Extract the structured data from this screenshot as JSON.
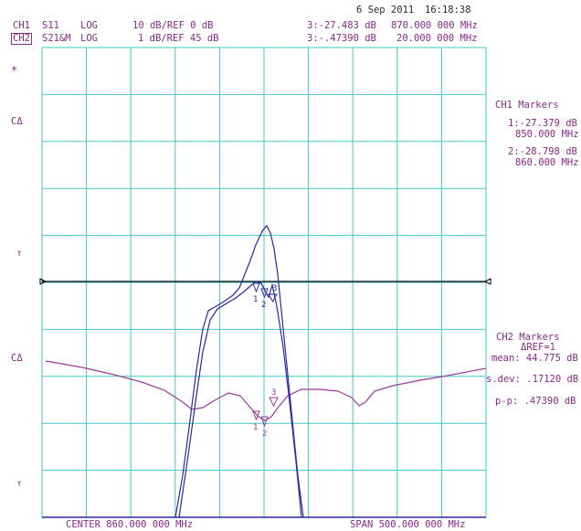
{
  "header": {
    "date": "6 Sep 2011",
    "time": "16:18:38",
    "ch1": {
      "label": "CH1",
      "param": "S11",
      "format": "LOG",
      "scale": "10 dB/REF 0 dB"
    },
    "ch2": {
      "label": "CH2",
      "param": "S21&M",
      "format": "LOG",
      "scale": "1 dB/REF 45 dB"
    },
    "marker3_ch1": {
      "value": "3:-27.483 dB",
      "freq": "870.000 000 MHz"
    },
    "marker3_ch2": {
      "value": "3:-.47390 dB",
      "freq": "20.000 000 MHz"
    }
  },
  "left_symbols": {
    "star": "*",
    "c_delta_1": "CΔ",
    "arrow_1": "↑",
    "c_delta_2": "CΔ",
    "arrow_2": "↑"
  },
  "ch1_markers": {
    "title": "CH1 Markers",
    "m1_value": "1:-27.379 dB",
    "m1_freq": "850.000 MHz",
    "m2_value": "2:-28.798 dB",
    "m2_freq": "860.000 MHz"
  },
  "ch2_markers": {
    "title": "CH2 Markers",
    "ref": "ΔREF=1",
    "mean": "mean: 44.775 dB",
    "sdev": "s.dev: .17120 dB",
    "pp": "p-p: .47390 dB"
  },
  "footer": {
    "center": "CENTER 860.000 000 MHz",
    "span": "SPAN 500.000 000 MHz"
  },
  "graph_markers": {
    "m1": "1",
    "m2": "2",
    "m3": "3"
  },
  "colors": {
    "grid": "#40c8c8",
    "ch1": "#9a3a9a",
    "ch2": "#2a2aa0",
    "text": "#8a2a8a",
    "reference": "#000000"
  }
}
